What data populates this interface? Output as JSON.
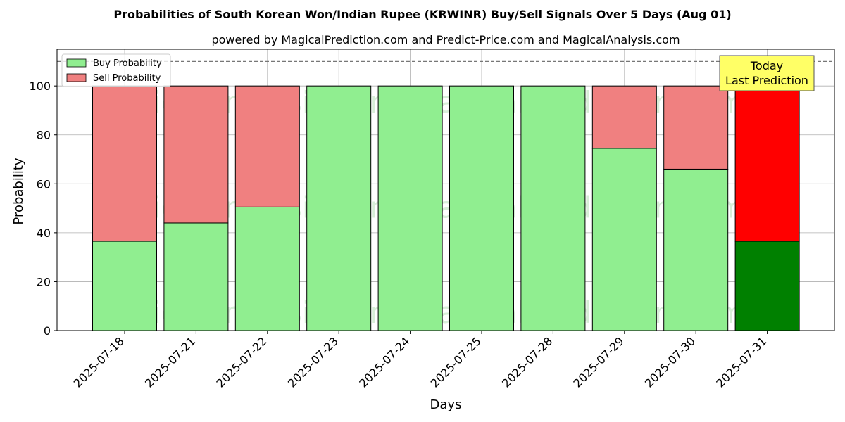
{
  "chart_data": {
    "type": "bar",
    "stacked": true,
    "title": "Probabilities of South Korean Won/Indian Rupee (KRWINR) Buy/Sell Signals Over 5 Days (Aug 01)",
    "subtitle": "powered by MagicalPrediction.com and Predict-Price.com and MagicalAnalysis.com",
    "xlabel": "Days",
    "ylabel": "Probability",
    "ylim": [
      0,
      115
    ],
    "yticks": [
      0,
      20,
      40,
      60,
      80,
      100
    ],
    "grid": true,
    "legend_position": "top-left",
    "reference_line": 110,
    "categories": [
      "2025-07-18",
      "2025-07-21",
      "2025-07-22",
      "2025-07-23",
      "2025-07-24",
      "2025-07-25",
      "2025-07-28",
      "2025-07-29",
      "2025-07-30",
      "2025-07-31"
    ],
    "series": [
      {
        "name": "Buy Probability",
        "color": "#90ee90",
        "values": [
          36.5,
          44,
          50.5,
          100,
          100,
          100,
          100,
          74.5,
          66,
          36.5
        ]
      },
      {
        "name": "Sell Probability",
        "color": "#f08080",
        "values": [
          63.5,
          56,
          49.5,
          0,
          0,
          0,
          0,
          25.5,
          34,
          63.5
        ]
      }
    ],
    "highlight": {
      "index": 9,
      "buy_color": "#008000",
      "sell_color": "#ff0000"
    },
    "annotation": {
      "line1": "Today",
      "line2": "Last Prediction",
      "background": "#ffff66"
    },
    "watermarks": [
      "MagicalAnalysis.com",
      "MagicalPrediction.com"
    ]
  }
}
